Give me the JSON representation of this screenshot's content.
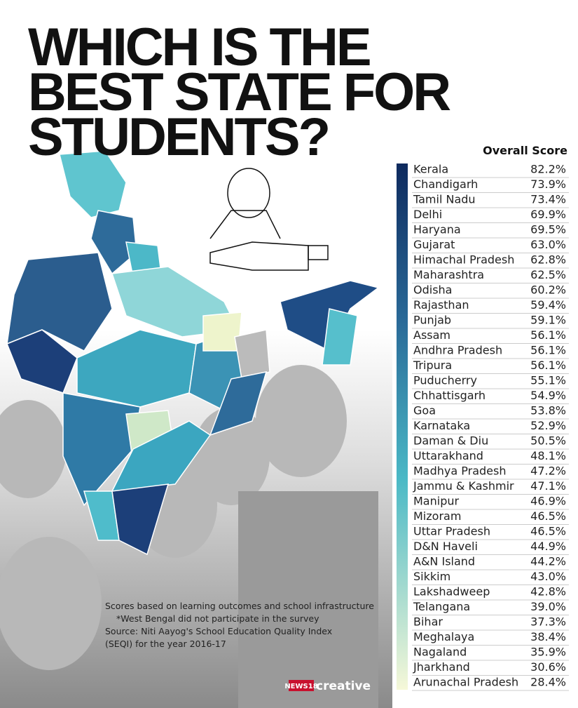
{
  "title": [
    "WHICH IS THE",
    "BEST STATE FOR",
    "STUDENTS?"
  ],
  "table": {
    "header": "Overall Score",
    "rows": [
      [
        "Kerala",
        "82.2%"
      ],
      [
        "Chandigarh",
        "73.9%"
      ],
      [
        "Tamil Nadu",
        "73.4%"
      ],
      [
        "Delhi",
        "69.9%"
      ],
      [
        "Haryana",
        "69.5%"
      ],
      [
        "Gujarat",
        "63.0%"
      ],
      [
        "Himachal Pradesh",
        "62.8%"
      ],
      [
        "Maharashtra",
        "62.5%"
      ],
      [
        "Odisha",
        "60.2%"
      ],
      [
        "Rajasthan",
        "59.4%"
      ],
      [
        "Punjab",
        "59.1%"
      ],
      [
        "Assam",
        "56.1%"
      ],
      [
        "Andhra Pradesh",
        "56.1%"
      ],
      [
        "Tripura",
        "56.1%"
      ],
      [
        "Puducherry",
        "55.1%"
      ],
      [
        "Chhattisgarh",
        "54.9%"
      ],
      [
        "Goa",
        "53.8%"
      ],
      [
        "Karnataka",
        "52.9%"
      ],
      [
        "Daman & Diu",
        "50.5%"
      ],
      [
        "Uttarakhand",
        "48.1%"
      ],
      [
        "Madhya Pradesh",
        "47.2%"
      ],
      [
        "Jammu & Kashmir",
        "47.1%"
      ],
      [
        "Manipur",
        "46.9%"
      ],
      [
        "Mizoram",
        "46.5%"
      ],
      [
        "Uttar Pradesh",
        "46.5%"
      ],
      [
        "D&N Haveli",
        "44.9%"
      ],
      [
        "A&N Island",
        "44.2%"
      ],
      [
        "Sikkim",
        "43.0%"
      ],
      [
        "Lakshadweep",
        "42.8%"
      ],
      [
        "Telangana",
        "39.0%"
      ],
      [
        "Bihar",
        "37.3%"
      ],
      [
        "Meghalaya",
        "38.4%"
      ],
      [
        "Nagaland",
        "35.9%"
      ],
      [
        "Jharkhand",
        "30.6%"
      ],
      [
        "Arunachal Pradesh",
        "28.4%"
      ]
    ]
  },
  "notes": [
    "Scores based on learning outcomes and school infrastructure",
    "*West Bengal did not participate in the survey",
    "Source: Niti Aayog's School Education Quality Index",
    "(SEQI) for the year 2016-17"
  ],
  "logo": {
    "brand": "NEWS18",
    "label": "creative"
  }
}
